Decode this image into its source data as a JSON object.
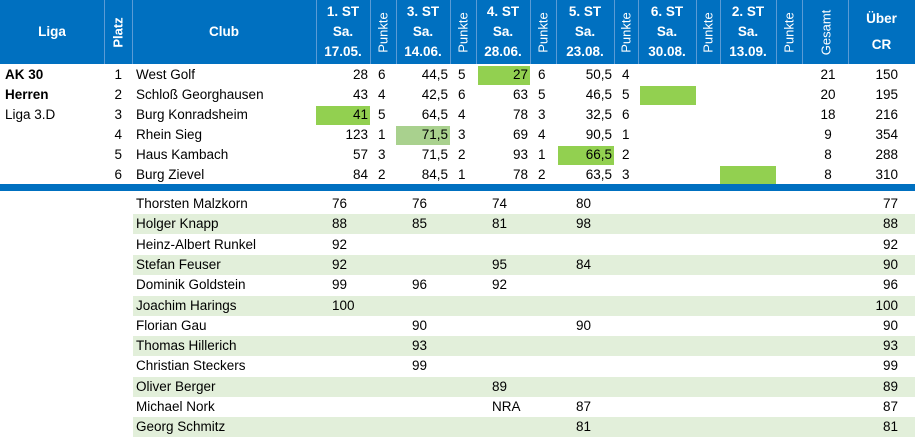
{
  "header": {
    "liga": "Liga",
    "platz": "Platz",
    "club": "Club",
    "punkte": "Punkte",
    "gesamt": "Gesamt",
    "ueber": [
      "Über",
      "CR"
    ],
    "rounds": [
      {
        "label": "1. ST",
        "day": "Sa.",
        "date": "17.05."
      },
      {
        "label": "3. ST",
        "day": "Sa.",
        "date": "14.06."
      },
      {
        "label": "4. ST",
        "day": "Sa.",
        "date": "28.06."
      },
      {
        "label": "5. ST",
        "day": "Sa.",
        "date": "23.08."
      },
      {
        "label": "6. ST",
        "day": "Sa.",
        "date": "30.08."
      },
      {
        "label": "2. ST",
        "day": "Sa.",
        "date": "13.09."
      }
    ]
  },
  "league": [
    "AK 30",
    "Herren",
    "Liga 3.D"
  ],
  "teams": [
    {
      "platz": "1",
      "club": "West Golf",
      "cells": [
        "28",
        "6",
        "44,5",
        "5",
        "27",
        "6",
        "50,5",
        "4",
        "",
        "",
        "",
        ""
      ],
      "gesamt": "21",
      "cr": "150"
    },
    {
      "platz": "2",
      "club": "Schloß Georghausen",
      "cells": [
        "43",
        "4",
        "42,5",
        "6",
        "63",
        "5",
        "46,5",
        "5",
        "",
        "",
        "",
        ""
      ],
      "gesamt": "20",
      "cr": "195"
    },
    {
      "platz": "3",
      "club": "Burg Konradsheim",
      "cells": [
        "41",
        "5",
        "64,5",
        "4",
        "78",
        "3",
        "32,5",
        "6",
        "",
        "",
        "",
        ""
      ],
      "gesamt": "18",
      "cr": "216"
    },
    {
      "platz": "4",
      "club": "Rhein Sieg",
      "cells": [
        "123",
        "1",
        "71,5",
        "3",
        "69",
        "4",
        "90,5",
        "1",
        "",
        "",
        "",
        ""
      ],
      "gesamt": "9",
      "cr": "354"
    },
    {
      "platz": "5",
      "club": "Haus Kambach",
      "cells": [
        "57",
        "3",
        "71,5",
        "2",
        "93",
        "1",
        "66,5",
        "2",
        "",
        "",
        "",
        ""
      ],
      "gesamt": "8",
      "cr": "288"
    },
    {
      "platz": "6",
      "club": "Burg Zievel",
      "cells": [
        "84",
        "2",
        "84,5",
        "1",
        "78",
        "2",
        "63,5",
        "3",
        "",
        "",
        "",
        ""
      ],
      "gesamt": "8",
      "cr": "310"
    }
  ],
  "players": [
    {
      "name": "Thorsten Malzkorn",
      "scores": [
        "76",
        "76",
        "74",
        "80",
        "",
        ""
      ],
      "cr": "77"
    },
    {
      "name": "Holger Knapp",
      "scores": [
        "88",
        "85",
        "81",
        "98",
        "",
        ""
      ],
      "cr": "88"
    },
    {
      "name": "Heinz-Albert Runkel",
      "scores": [
        "92",
        "",
        "",
        "",
        "",
        ""
      ],
      "cr": "92"
    },
    {
      "name": "Stefan Feuser",
      "scores": [
        "92",
        "",
        "95",
        "84",
        "",
        ""
      ],
      "cr": "90"
    },
    {
      "name": "Dominik Goldstein",
      "scores": [
        "99",
        "96",
        "92",
        "",
        "",
        ""
      ],
      "cr": "96"
    },
    {
      "name": "Joachim Harings",
      "scores": [
        "100",
        "",
        "",
        "",
        "",
        ""
      ],
      "cr": "100"
    },
    {
      "name": "Florian Gau",
      "scores": [
        "",
        "90",
        "",
        "90",
        "",
        ""
      ],
      "cr": "90"
    },
    {
      "name": "Thomas Hillerich",
      "scores": [
        "",
        "93",
        "",
        "",
        "",
        ""
      ],
      "cr": "93"
    },
    {
      "name": "Christian Steckers",
      "scores": [
        "",
        "99",
        "",
        "",
        "",
        ""
      ],
      "cr": "99"
    },
    {
      "name": "Oliver Berger",
      "scores": [
        "",
        "",
        "89",
        "",
        "",
        ""
      ],
      "cr": "89"
    },
    {
      "name": "Michael Nork",
      "scores": [
        "",
        "",
        "NRA",
        "87",
        "",
        ""
      ],
      "cr": "87"
    },
    {
      "name": "Georg Schmitz",
      "scores": [
        "",
        "",
        "",
        "81",
        "",
        ""
      ],
      "cr": "81"
    }
  ],
  "colors": {
    "header": "#0070c0",
    "highlight": "#92d050",
    "highlight_light": "#a9d18e",
    "band": "#e2efda"
  }
}
